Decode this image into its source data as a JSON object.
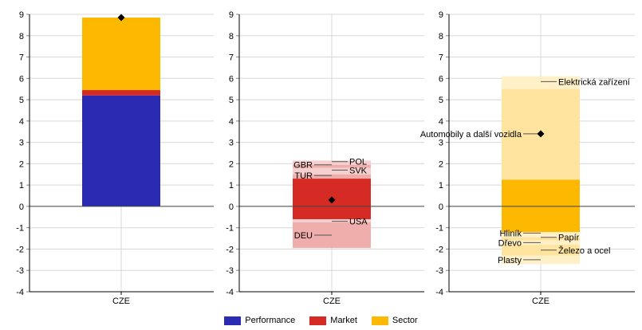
{
  "colors": {
    "performance": "#2a2bb2",
    "market": "#d62b24",
    "sector": "#fdb901",
    "grid": "#d8d8d8",
    "axis": "#000000"
  },
  "legend": [
    {
      "name": "Performance",
      "color": "#2a2bb2"
    },
    {
      "name": "Market",
      "color": "#d62b24"
    },
    {
      "name": "Sector",
      "color": "#fdb901"
    }
  ],
  "chart_data": [
    {
      "type": "bar",
      "category": "CZE",
      "ylim": [
        -4,
        9
      ],
      "yticks": [
        "9",
        "8",
        "7",
        "6",
        "5",
        "4",
        "3",
        "2",
        "1",
        "0",
        "-1",
        "-2",
        "-3",
        "-4"
      ],
      "grid": true,
      "stacked": [
        {
          "name": "Performance",
          "from": 0,
          "to": 5.2
        },
        {
          "name": "Market",
          "from": 5.2,
          "to": 5.45
        },
        {
          "name": "Sector",
          "from": 5.45,
          "to": 8.85
        }
      ],
      "total_marker": 8.85
    },
    {
      "type": "bar",
      "category": "CZE",
      "ylim": [
        -4,
        9
      ],
      "yticks": [
        "9",
        "8",
        "7",
        "6",
        "5",
        "4",
        "3",
        "2",
        "1",
        "0",
        "-1",
        "-2",
        "-3",
        "-4"
      ],
      "grid": true,
      "main_bar": {
        "name": "Market",
        "from": -0.6,
        "to": 1.3
      },
      "components": [
        {
          "label": "POL",
          "from": 1.95,
          "to": 2.15,
          "label_side": "right",
          "label_y": 2.1
        },
        {
          "label": "GBR",
          "from": 1.8,
          "to": 1.95,
          "label_side": "left",
          "label_y": 1.95
        },
        {
          "label": "SVK",
          "from": 1.5,
          "to": 1.8,
          "label_side": "right",
          "label_y": 1.7
        },
        {
          "label": "TUR",
          "from": 1.3,
          "to": 1.5,
          "label_side": "left",
          "label_y": 1.45
        },
        {
          "label": "USA",
          "from": -0.75,
          "to": -0.6,
          "label_side": "right",
          "label_y": -0.7
        },
        {
          "label": "DEU",
          "from": -1.95,
          "to": -0.75,
          "label_side": "left",
          "label_y": -1.35
        }
      ],
      "total_marker": 0.3
    },
    {
      "type": "bar",
      "category": "CZE",
      "ylim": [
        -4,
        9
      ],
      "yticks": [
        "9",
        "8",
        "7",
        "6",
        "5",
        "4",
        "3",
        "2",
        "1",
        "0",
        "-1",
        "-2",
        "-3",
        "-4"
      ],
      "grid": true,
      "main_bar": {
        "name": "Sector",
        "from": -1.2,
        "to": 1.25
      },
      "components": [
        {
          "label": "Elektrická zařízení",
          "from": 5.5,
          "to": 6.1,
          "label_side": "right",
          "label_y": 5.85
        },
        {
          "label": "Automobily a další vozidla",
          "from": 1.25,
          "to": 5.5,
          "label_side": "left",
          "label_y": 3.4
        },
        {
          "label": "Hliník",
          "from": -1.45,
          "to": -1.2,
          "label_side": "left",
          "label_y": -1.25
        },
        {
          "label": "Papír",
          "from": -1.6,
          "to": -1.45,
          "label_side": "right",
          "label_y": -1.45
        },
        {
          "label": "Dřevo",
          "from": -1.8,
          "to": -1.6,
          "label_side": "left",
          "label_y": -1.7
        },
        {
          "label": "Železo a ocel",
          "from": -2.3,
          "to": -1.8,
          "label_side": "right",
          "label_y": -2.05
        },
        {
          "label": "Plasty",
          "from": -2.7,
          "to": -2.3,
          "label_side": "left",
          "label_y": -2.5
        }
      ],
      "total_marker": 3.4
    }
  ]
}
